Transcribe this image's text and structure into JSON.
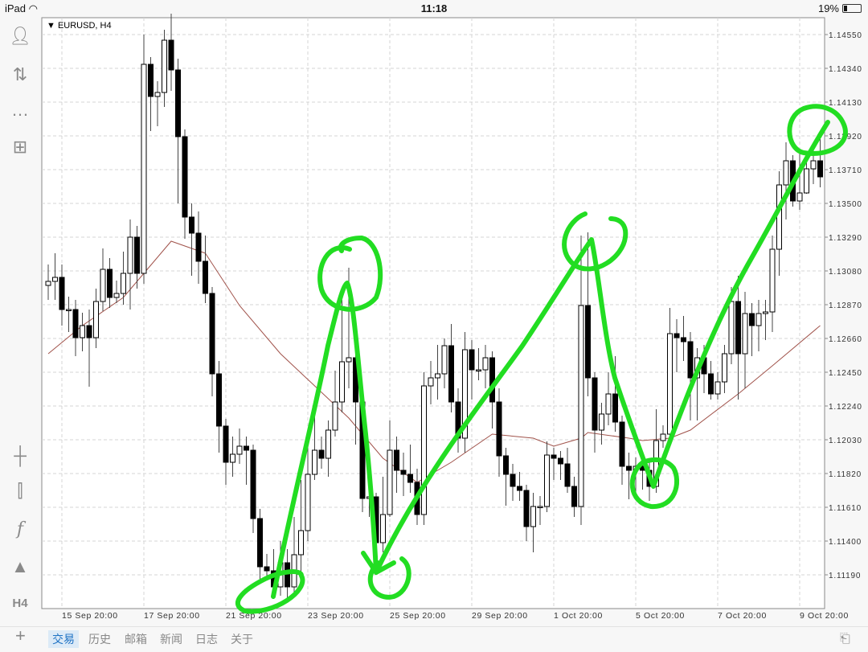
{
  "status_bar": {
    "device": "iPad",
    "time": "11:18",
    "battery": "19%",
    "battery_level": 0.19
  },
  "chart_header": {
    "symbol_label": "EURUSD, H4"
  },
  "toolbar_icons": [
    "account-icon",
    "trade-arrows-icon",
    "chat-icon",
    "new-order-icon",
    "crosshair-icon",
    "chart-type-icon",
    "indicator-icon",
    "objects-icon",
    "timeframe-icon"
  ],
  "timeframe_label": "H4",
  "bottom_tabs": [
    {
      "label": "交易",
      "active": true
    },
    {
      "label": "历史",
      "active": false
    },
    {
      "label": "邮箱",
      "active": false
    },
    {
      "label": "新闻",
      "active": false
    },
    {
      "label": "日志",
      "active": false
    },
    {
      "label": "关于",
      "active": false
    }
  ],
  "colors": {
    "bull_fill": "#ffffff",
    "bear_fill": "#000000",
    "ma_line": "#a0524a",
    "annotation": "#22dd22",
    "grid": "#d0d0d0",
    "active_tab": "#1f73c4"
  },
  "chart_data": {
    "type": "candlestick",
    "title": "EURUSD, H4",
    "ylim": [
      1.1098,
      1.147
    ],
    "grid": true,
    "y_ticks": [
      "1.14550",
      "1.14340",
      "1.14130",
      "1.13920",
      "1.13710",
      "1.13500",
      "1.13290",
      "1.13080",
      "1.12870",
      "1.12660",
      "1.12450",
      "1.12240",
      "1.12030",
      "1.11820",
      "1.11610",
      "1.11400",
      "1.11190"
    ],
    "x_ticks": [
      {
        "label": "15 Sep 20:00",
        "bar": 2
      },
      {
        "label": "17 Sep 20:00",
        "bar": 14
      },
      {
        "label": "21 Sep 20:00",
        "bar": 26
      },
      {
        "label": "23 Sep 20:00",
        "bar": 38
      },
      {
        "label": "25 Sep 20:00",
        "bar": 50
      },
      {
        "label": "29 Sep 20:00",
        "bar": 62
      },
      {
        "label": "1 Oct 20:00",
        "bar": 74
      },
      {
        "label": "5 Oct 20:00",
        "bar": 86
      },
      {
        "label": "7 Oct 20:00",
        "bar": 98
      },
      {
        "label": "9 Oct 20:00",
        "bar": 110
      }
    ],
    "candles_ohlc": [
      [
        1.1299,
        1.1312,
        1.129,
        1.13015
      ],
      [
        1.13015,
        1.1319,
        1.129,
        1.1304
      ],
      [
        1.1304,
        1.1312,
        1.1274,
        1.1284
      ],
      [
        1.1284,
        1.1292,
        1.127,
        1.1284
      ],
      [
        1.1284,
        1.129,
        1.1255,
        1.12665
      ],
      [
        1.12665,
        1.1282,
        1.1258,
        1.1274
      ],
      [
        1.1274,
        1.1284,
        1.1236,
        1.12665
      ],
      [
        1.12665,
        1.1297,
        1.126,
        1.1289
      ],
      [
        1.1289,
        1.1322,
        1.1283,
        1.1309
      ],
      [
        1.1309,
        1.1316,
        1.1285,
        1.12915
      ],
      [
        1.12915,
        1.1302,
        1.1288,
        1.1294
      ],
      [
        1.1294,
        1.132,
        1.1287,
        1.13065
      ],
      [
        1.13065,
        1.134,
        1.1284,
        1.1329
      ],
      [
        1.1329,
        1.1336,
        1.1297,
        1.13065
      ],
      [
        1.13065,
        1.1455,
        1.13,
        1.14365
      ],
      [
        1.14365,
        1.1441,
        1.1395,
        1.14165
      ],
      [
        1.14165,
        1.1426,
        1.1398,
        1.1419
      ],
      [
        1.1419,
        1.1458,
        1.141,
        1.14515
      ],
      [
        1.14515,
        1.1468,
        1.142,
        1.1433
      ],
      [
        1.1433,
        1.144,
        1.135,
        1.13915
      ],
      [
        1.13915,
        1.1396,
        1.1328,
        1.13415
      ],
      [
        1.13415,
        1.135,
        1.1305,
        1.13315
      ],
      [
        1.13315,
        1.1345,
        1.13,
        1.1314
      ],
      [
        1.1314,
        1.133,
        1.1288,
        1.1294
      ],
      [
        1.1294,
        1.1298,
        1.123,
        1.1244
      ],
      [
        1.1244,
        1.1252,
        1.1195,
        1.12115
      ],
      [
        1.12115,
        1.1216,
        1.1175,
        1.1189
      ],
      [
        1.1189,
        1.1205,
        1.118,
        1.1194
      ],
      [
        1.1194,
        1.121,
        1.1188,
        1.1199
      ],
      [
        1.1199,
        1.1205,
        1.1175,
        1.11965
      ],
      [
        1.11965,
        1.12,
        1.1145,
        1.1154
      ],
      [
        1.1154,
        1.116,
        1.1115,
        1.1124
      ],
      [
        1.1124,
        1.1132,
        1.1117,
        1.11215
      ],
      [
        1.11215,
        1.1135,
        1.1104,
        1.11115
      ],
      [
        1.11115,
        1.114,
        1.1106,
        1.11265
      ],
      [
        1.11265,
        1.1135,
        1.1104,
        1.11115
      ],
      [
        1.11115,
        1.1155,
        1.1108,
        1.11315
      ],
      [
        1.11315,
        1.1178,
        1.111,
        1.11465
      ],
      [
        1.11465,
        1.12,
        1.114,
        1.11815
      ],
      [
        1.11815,
        1.1222,
        1.1178,
        1.11965
      ],
      [
        1.11965,
        1.1205,
        1.1185,
        1.11915
      ],
      [
        1.11915,
        1.1215,
        1.118,
        1.1209
      ],
      [
        1.1209,
        1.1246,
        1.1205,
        1.12265
      ],
      [
        1.12265,
        1.129,
        1.122,
        1.12515
      ],
      [
        1.12515,
        1.131,
        1.1235,
        1.1254
      ],
      [
        1.1254,
        1.1258,
        1.12,
        1.12265
      ],
      [
        1.12265,
        1.1232,
        1.1158,
        1.11665
      ],
      [
        1.11665,
        1.1195,
        1.1155,
        1.11675
      ],
      [
        1.11675,
        1.117,
        1.1128,
        1.1139
      ],
      [
        1.1139,
        1.118,
        1.1133,
        1.11565
      ],
      [
        1.11565,
        1.1215,
        1.1155,
        1.11965
      ],
      [
        1.11965,
        1.1205,
        1.117,
        1.1184
      ],
      [
        1.1184,
        1.1195,
        1.1168,
        1.11815
      ],
      [
        1.11815,
        1.12,
        1.117,
        1.11765
      ],
      [
        1.11765,
        1.1185,
        1.115,
        1.11565
      ],
      [
        1.11565,
        1.1245,
        1.115,
        1.12365
      ],
      [
        1.12365,
        1.1252,
        1.1225,
        1.12415
      ],
      [
        1.12415,
        1.1262,
        1.1228,
        1.1244
      ],
      [
        1.1244,
        1.1266,
        1.1235,
        1.12615
      ],
      [
        1.12615,
        1.1275,
        1.122,
        1.12265
      ],
      [
        1.12265,
        1.1235,
        1.1195,
        1.1204
      ],
      [
        1.1204,
        1.127,
        1.1195,
        1.1259
      ],
      [
        1.1259,
        1.1265,
        1.1228,
        1.12465
      ],
      [
        1.12465,
        1.126,
        1.124,
        1.12465
      ],
      [
        1.12465,
        1.1262,
        1.1235,
        1.1254
      ],
      [
        1.1254,
        1.1258,
        1.121,
        1.12265
      ],
      [
        1.12265,
        1.1235,
        1.118,
        1.1193
      ],
      [
        1.1193,
        1.1198,
        1.1162,
        1.11815
      ],
      [
        1.11815,
        1.1188,
        1.1165,
        1.1174
      ],
      [
        1.1174,
        1.1183,
        1.1165,
        1.11715
      ],
      [
        1.11715,
        1.1175,
        1.114,
        1.1149
      ],
      [
        1.1149,
        1.117,
        1.1133,
        1.11615
      ],
      [
        1.11615,
        1.1168,
        1.115,
        1.11615
      ],
      [
        1.11615,
        1.1202,
        1.1158,
        1.11935
      ],
      [
        1.11935,
        1.1198,
        1.1178,
        1.11915
      ],
      [
        1.11915,
        1.1196,
        1.1178,
        1.1188
      ],
      [
        1.1188,
        1.1198,
        1.117,
        1.1174
      ],
      [
        1.1174,
        1.118,
        1.1155,
        1.11615
      ],
      [
        1.11615,
        1.133,
        1.115,
        1.12865
      ],
      [
        1.12865,
        1.1332,
        1.123,
        1.12415
      ],
      [
        1.12415,
        1.1245,
        1.1195,
        1.1209
      ],
      [
        1.1209,
        1.1226,
        1.12,
        1.1219
      ],
      [
        1.1219,
        1.1245,
        1.1212,
        1.12315
      ],
      [
        1.12315,
        1.1255,
        1.1208,
        1.1214
      ],
      [
        1.1214,
        1.1218,
        1.1175,
        1.11865
      ],
      [
        1.11865,
        1.1195,
        1.1166,
        1.1184
      ],
      [
        1.1184,
        1.1192,
        1.117,
        1.11865
      ],
      [
        1.11865,
        1.1195,
        1.1172,
        1.1184
      ],
      [
        1.1184,
        1.119,
        1.1165,
        1.1174
      ],
      [
        1.1174,
        1.1222,
        1.117,
        1.12025
      ],
      [
        1.12025,
        1.1212,
        1.1198,
        1.12065
      ],
      [
        1.12065,
        1.1285,
        1.12,
        1.1269
      ],
      [
        1.1269,
        1.1278,
        1.1245,
        1.12665
      ],
      [
        1.12665,
        1.128,
        1.1252,
        1.1264
      ],
      [
        1.1264,
        1.127,
        1.1215,
        1.12415
      ],
      [
        1.12415,
        1.126,
        1.1215,
        1.1254
      ],
      [
        1.1254,
        1.1262,
        1.1232,
        1.1244
      ],
      [
        1.1244,
        1.1252,
        1.1228,
        1.12315
      ],
      [
        1.12315,
        1.1245,
        1.1228,
        1.1239
      ],
      [
        1.1239,
        1.1262,
        1.1232,
        1.12565
      ],
      [
        1.12565,
        1.1298,
        1.125,
        1.1289
      ],
      [
        1.1289,
        1.1305,
        1.1228,
        1.12565
      ],
      [
        1.12565,
        1.1295,
        1.1235,
        1.12815
      ],
      [
        1.12815,
        1.1288,
        1.1255,
        1.1274
      ],
      [
        1.1274,
        1.129,
        1.1258,
        1.12815
      ],
      [
        1.12815,
        1.129,
        1.1265,
        1.12825
      ],
      [
        1.12825,
        1.133,
        1.127,
        1.13215
      ],
      [
        1.13215,
        1.137,
        1.1305,
        1.13615
      ],
      [
        1.13615,
        1.1388,
        1.134,
        1.13765
      ],
      [
        1.13765,
        1.138,
        1.1348,
        1.13515
      ],
      [
        1.13515,
        1.1382,
        1.1346,
        1.13565
      ],
      [
        1.13565,
        1.138,
        1.1356,
        1.13715
      ],
      [
        1.13715,
        1.1386,
        1.1362,
        1.13765
      ],
      [
        1.13765,
        1.139,
        1.136,
        1.13665
      ]
    ],
    "moving_average": [
      [
        0,
        1.12565
      ],
      [
        5,
        1.1274
      ],
      [
        11,
        1.12915
      ],
      [
        18,
        1.13265
      ],
      [
        23,
        1.1319
      ],
      [
        28,
        1.12865
      ],
      [
        34,
        1.12565
      ],
      [
        44,
        1.12165
      ],
      [
        49,
        1.11915
      ],
      [
        54,
        1.11765
      ],
      [
        59,
        1.1189
      ],
      [
        65,
        1.12065
      ],
      [
        71,
        1.1204
      ],
      [
        74,
        1.1199
      ],
      [
        78,
        1.1204
      ],
      [
        79,
        1.12075
      ],
      [
        85,
        1.1204
      ],
      [
        87,
        1.12025
      ],
      [
        91,
        1.1204
      ],
      [
        94,
        1.1209
      ],
      [
        101,
        1.12315
      ],
      [
        106,
        1.1249
      ],
      [
        113,
        1.1274
      ]
    ]
  }
}
